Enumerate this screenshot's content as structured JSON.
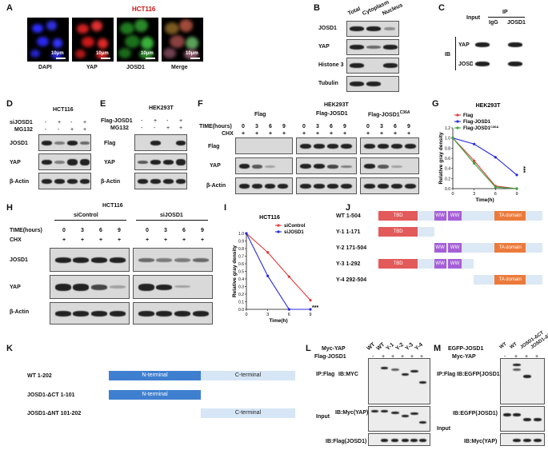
{
  "panels": {
    "A": "A",
    "B": "B",
    "C": "C",
    "D": "D",
    "E": "E",
    "F": "F",
    "G": "G",
    "H": "H",
    "I": "I",
    "J": "J",
    "K": "K",
    "L": "L",
    "M": "M"
  },
  "a": {
    "title": "HCT116",
    "captions": [
      "DAPI",
      "YAP",
      "JOSD1",
      "Merge"
    ],
    "scale": "10μm"
  },
  "b": {
    "cols": [
      "Total",
      "Cytoplasm",
      "Nucleus"
    ],
    "rows": [
      "JOSD1",
      "YAP",
      "Histone 3",
      "Tubulin"
    ]
  },
  "c": {
    "input": "Input",
    "ip": "IP",
    "igg": "IgG",
    "josd1": "JOSD1",
    "ib": "IB",
    "rows": [
      "YAP",
      "JOSD1"
    ]
  },
  "d": {
    "title": "HCT116",
    "conds": [
      "siJOSD1",
      "MG132"
    ],
    "signs": [
      [
        "-",
        "+",
        "-",
        "+"
      ],
      [
        "-",
        "-",
        "+",
        "+"
      ]
    ],
    "rows": [
      "JOSD1",
      "YAP",
      "β-Actin"
    ]
  },
  "e": {
    "title": "HEK293T",
    "conds": [
      "Flag-JOSD1",
      "MG132"
    ],
    "signs": [
      [
        "-",
        "+",
        "-",
        "+"
      ],
      [
        "-",
        "-",
        "+",
        "+"
      ]
    ],
    "rows": [
      "Flag",
      "YAP",
      "β-Actin"
    ]
  },
  "f": {
    "title": "HEK293T",
    "groups": [
      "Flag",
      "Flag-JOSD1",
      "Flag-JOSD1"
    ],
    "c36a": "C36A",
    "time": "TIME(hours)",
    "chx": "CHX",
    "times": [
      "0",
      "3",
      "6",
      "9"
    ],
    "plus": "+",
    "rows": [
      "Flag",
      "YAP",
      "β-Actin"
    ]
  },
  "h": {
    "title": "HCT116",
    "groups": [
      "siControl",
      "siJOSD1"
    ],
    "time": "TIME(hours)",
    "chx": "CHX",
    "times": [
      "0",
      "3",
      "6",
      "9"
    ],
    "plus": "+",
    "rows": [
      "JOSD1",
      "YAP",
      "β-Actin"
    ]
  },
  "chart_data": [
    {
      "type": "line",
      "title": "HEK293T",
      "xlabel": "Time(h)",
      "ylabel": "Relative gray density",
      "x": [
        0,
        3,
        6,
        9
      ],
      "xlim": [
        0,
        9
      ],
      "ylim": [
        0,
        1.2
      ],
      "yticks": [
        "0.0",
        "0.2",
        "0.4",
        "0.6",
        "0.8",
        "1.0",
        "1.2"
      ],
      "xticks": [
        "0",
        "3",
        "6",
        "9"
      ],
      "series": [
        {
          "name": "Flag",
          "values": [
            1.0,
            0.55,
            0.05,
            0.0
          ],
          "color": "#e03a3a"
        },
        {
          "name": "Flag-JOSD1",
          "values": [
            1.0,
            0.88,
            0.62,
            0.27
          ],
          "color": "#2a2ae0"
        },
        {
          "name": "Flag-JOSD1",
          "sup": "C36A",
          "values": [
            1.0,
            0.5,
            0.03,
            0.0
          ],
          "color": "#3aa53a"
        }
      ],
      "annotation": "***"
    },
    {
      "type": "line",
      "title": "HCT116",
      "xlabel": "Time(h)",
      "ylabel": "Relative gray density",
      "x": [
        0,
        3,
        6,
        9
      ],
      "xlim": [
        0,
        9
      ],
      "ylim": [
        0,
        1.0
      ],
      "yticks": [
        "0.0",
        "0.1",
        "0.2",
        "0.3",
        "0.4",
        "0.5",
        "0.6",
        "0.7",
        "0.8",
        "0.9",
        "1.0"
      ],
      "xticks": [
        "0",
        "3",
        "6",
        "9"
      ],
      "series": [
        {
          "name": "siControl",
          "values": [
            1.0,
            0.75,
            0.43,
            0.12
          ],
          "color": "#e03a3a"
        },
        {
          "name": "siJOSD1",
          "values": [
            1.0,
            0.44,
            0.0,
            0.0
          ],
          "color": "#2a2ae0"
        }
      ],
      "annotation": "***"
    }
  ],
  "j": {
    "rows": [
      {
        "label": "WT",
        "range": "1-504"
      },
      {
        "label": "Y-1",
        "range": "1-171"
      },
      {
        "label": "Y-2",
        "range": "171-504"
      },
      {
        "label": "Y-3",
        "range": "1-292"
      },
      {
        "label": "Y-4",
        "range": "292-504"
      }
    ],
    "tbd": "TBD",
    "ww": "WW",
    "ta": "TA domain"
  },
  "k": {
    "rows": [
      {
        "label": "WT",
        "range": "1-202"
      },
      {
        "label": "JOSD1-ΔCT",
        "range": "1-101"
      },
      {
        "label": "JOSD1-ΔNT",
        "range": "101-202"
      }
    ],
    "nterm": "N-terminal",
    "cterm": "C-terminal"
  },
  "l": {
    "top1": "Myc-YAP",
    "top2": "Flag-JOSD1",
    "lanes": [
      "WT",
      "WT",
      "Y-1",
      "Y-2",
      "Y-3",
      "Y-4"
    ],
    "signs": [
      "-",
      "+",
      "+",
      "+",
      "+",
      "+"
    ],
    "ip": "IP:Flag",
    "ib1": "IB:MYC",
    "input": "Input",
    "ib2": "IB:Myc(YAP)",
    "ib3": "IB:Flag(JOSD1)"
  },
  "m": {
    "top1": "EGFP-JOSD1",
    "top2": "Myc-YAP",
    "lanes": [
      "WT",
      "WT",
      "JOSD1-ΔCT",
      "JOSD1-ΔNT"
    ],
    "signs": [
      "-",
      "+",
      "+",
      "+"
    ],
    "ip": "IP:Flag",
    "ib1": "IB:EGFP(JOSD1)",
    "input": "Input",
    "ib2": "IB:EGFP(JOSD1)",
    "ib3": "IB:Myc(YAP)"
  },
  "colors": {
    "tbd": "#e35a5a",
    "ww": "#a65fd6",
    "ta": "#ec7a3a",
    "track": "#dbe8f5",
    "nterm": "#3f7fcf",
    "cterm": "#d6e6f6"
  }
}
